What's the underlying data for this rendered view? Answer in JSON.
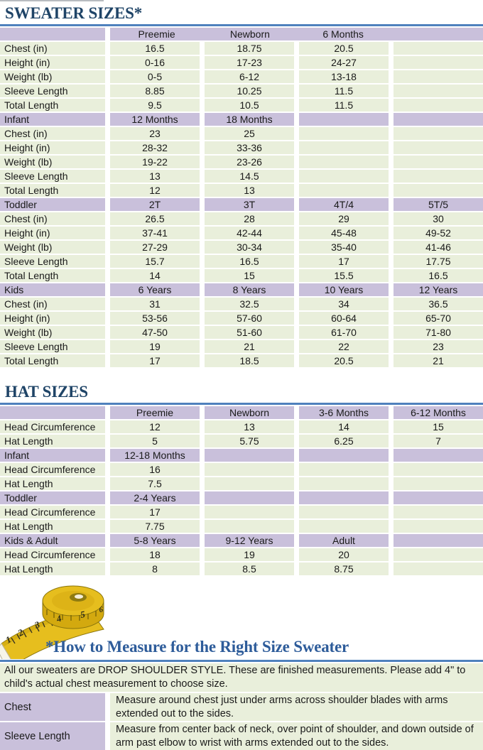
{
  "titles": {
    "sweater": "SWEATER SIZES*",
    "hat": "HAT SIZES",
    "measure": "*How to Measure for the Right Size Sweater"
  },
  "colors": {
    "header_purple": "#C9C0DB",
    "row_green": "#E9EFDB",
    "rule_blue": "#4F81BD",
    "title_navy": "#1F4467",
    "measure_blue": "#2E5C9A",
    "tape_yellow": "#E6BE1E"
  },
  "sweater_table": {
    "sections": [
      {
        "merged_header": true,
        "header": [
          "",
          "Preemie",
          "Newborn",
          "6 Months",
          ""
        ],
        "rows": [
          [
            "Chest (in)",
            "16.5",
            "18.75",
            "20.5",
            ""
          ],
          [
            "Height (in)",
            "0-16",
            "17-23",
            "24-27",
            ""
          ],
          [
            "Weight (lb)",
            "0-5",
            "6-12",
            "13-18",
            ""
          ],
          [
            "Sleeve Length",
            "8.85",
            "10.25",
            "11.5",
            ""
          ],
          [
            "Total Length",
            "9.5",
            "10.5",
            "11.5",
            ""
          ]
        ]
      },
      {
        "header": [
          "Infant",
          "12 Months",
          "18 Months",
          "",
          ""
        ],
        "rows": [
          [
            "Chest (in)",
            "23",
            "25",
            "",
            ""
          ],
          [
            "Height (in)",
            "28-32",
            "33-36",
            "",
            ""
          ],
          [
            "Weight (lb)",
            "19-22",
            "23-26",
            "",
            ""
          ],
          [
            "Sleeve Length",
            "13",
            "14.5",
            "",
            ""
          ],
          [
            "Total Length",
            "12",
            "13",
            "",
            ""
          ]
        ]
      },
      {
        "header": [
          "Toddler",
          "2T",
          "3T",
          "4T/4",
          "5T/5"
        ],
        "rows": [
          [
            "Chest (in)",
            "26.5",
            "28",
            "29",
            "30"
          ],
          [
            "Height (in)",
            "37-41",
            "42-44",
            "45-48",
            "49-52"
          ],
          [
            "Weight (lb)",
            "27-29",
            "30-34",
            "35-40",
            "41-46"
          ],
          [
            "Sleeve Length",
            "15.7",
            "16.5",
            "17",
            "17.75"
          ],
          [
            "Total Length",
            "14",
            "15",
            "15.5",
            "16.5"
          ]
        ]
      },
      {
        "header": [
          "Kids",
          "6 Years",
          "8 Years",
          "10 Years",
          "12 Years"
        ],
        "rows": [
          [
            "Chest (in)",
            "31",
            "32.5",
            "34",
            "36.5"
          ],
          [
            "Height (in)",
            "53-56",
            "57-60",
            "60-64",
            "65-70"
          ],
          [
            "Weight (lb)",
            "47-50",
            "51-60",
            "61-70",
            "71-80"
          ],
          [
            "Sleeve Length",
            "19",
            "21",
            "22",
            "23"
          ],
          [
            "Total Length",
            "17",
            "18.5",
            "20.5",
            "21"
          ]
        ]
      }
    ]
  },
  "hat_table": {
    "sections": [
      {
        "header": [
          "",
          "Preemie",
          "Newborn",
          "3-6 Months",
          "6-12 Months"
        ],
        "rows": [
          [
            "Head Circumference",
            "12",
            "13",
            "14",
            "15"
          ],
          [
            "Hat Length",
            "5",
            "5.75",
            "6.25",
            "7"
          ]
        ]
      },
      {
        "header": [
          "Infant",
          "12-18 Months",
          "",
          "",
          ""
        ],
        "rows": [
          [
            "Head Circumference",
            "16",
            "",
            "",
            ""
          ],
          [
            "Hat Length",
            "7.5",
            "",
            "",
            ""
          ]
        ]
      },
      {
        "header": [
          "Toddler",
          "2-4 Years",
          "",
          "",
          ""
        ],
        "rows": [
          [
            "Head Circumference",
            "17",
            "",
            "",
            ""
          ],
          [
            "Hat Length",
            "7.75",
            "",
            "",
            ""
          ]
        ]
      },
      {
        "header": [
          "Kids & Adult",
          "5-8 Years",
          "9-12 Years",
          "Adult",
          ""
        ],
        "rows": [
          [
            "Head Circumference",
            "18",
            "19",
            "20",
            ""
          ],
          [
            "Hat Length",
            "8",
            "8.5",
            "8.75",
            ""
          ]
        ]
      }
    ]
  },
  "notes": {
    "intro": "All our sweaters are DROP SHOULDER STYLE.  These are finished measurements.  Please add 4\" to child's actual chest measurement to choose size.",
    "items": [
      {
        "label": "Chest",
        "text": "Measure around chest just under arms across shoulder blades with arms extended out to the sides."
      },
      {
        "label": "Sleeve Length",
        "text": "Measure from center back of neck, over point of shoulder, and down outside of arm past elbow to wrist with arms extended out to the sides."
      }
    ]
  },
  "tape": {
    "numbers": [
      "1",
      "2",
      "3",
      "4",
      "5",
      "6"
    ]
  }
}
